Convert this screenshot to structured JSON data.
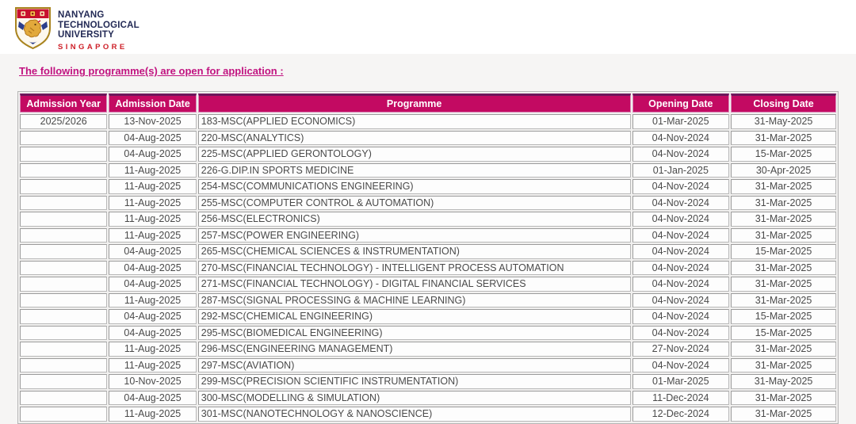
{
  "logo": {
    "icon": "ntu-crest-shield",
    "name_lines": [
      "NANYANG",
      "TECHNOLOGICAL",
      "UNIVERSITY"
    ],
    "country": "SINGAPORE"
  },
  "page": {
    "title": "The following programme(s) are open for application :"
  },
  "table": {
    "columns": [
      {
        "key": "admission_year",
        "label": "Admission Year",
        "align": "center"
      },
      {
        "key": "admission_date",
        "label": "Admission Date",
        "align": "center"
      },
      {
        "key": "programme",
        "label": "Programme",
        "align": "left"
      },
      {
        "key": "opening_date",
        "label": "Opening Date",
        "align": "center"
      },
      {
        "key": "closing_date",
        "label": "Closing Date",
        "align": "center"
      }
    ],
    "rows": [
      [
        "2025/2026",
        "13-Nov-2025",
        "183-MSC(APPLIED ECONOMICS)",
        "01-Mar-2025",
        "31-May-2025"
      ],
      [
        "",
        "04-Aug-2025",
        "220-MSC(ANALYTICS)",
        "04-Nov-2024",
        "31-Mar-2025"
      ],
      [
        "",
        "04-Aug-2025",
        "225-MSC(APPLIED GERONTOLOGY)",
        "04-Nov-2024",
        "15-Mar-2025"
      ],
      [
        "",
        "11-Aug-2025",
        "226-G.DIP.IN SPORTS MEDICINE",
        "01-Jan-2025",
        "30-Apr-2025"
      ],
      [
        "",
        "11-Aug-2025",
        "254-MSC(COMMUNICATIONS ENGINEERING)",
        "04-Nov-2024",
        "31-Mar-2025"
      ],
      [
        "",
        "11-Aug-2025",
        "255-MSC(COMPUTER CONTROL & AUTOMATION)",
        "04-Nov-2024",
        "31-Mar-2025"
      ],
      [
        "",
        "11-Aug-2025",
        "256-MSC(ELECTRONICS)",
        "04-Nov-2024",
        "31-Mar-2025"
      ],
      [
        "",
        "11-Aug-2025",
        "257-MSC(POWER ENGINEERING)",
        "04-Nov-2024",
        "31-Mar-2025"
      ],
      [
        "",
        "04-Aug-2025",
        "265-MSC(CHEMICAL SCIENCES & INSTRUMENTATION)",
        "04-Nov-2024",
        "15-Mar-2025"
      ],
      [
        "",
        "04-Aug-2025",
        "270-MSC(FINANCIAL TECHNOLOGY) - INTELLIGENT PROCESS AUTOMATION",
        "04-Nov-2024",
        "31-Mar-2025"
      ],
      [
        "",
        "04-Aug-2025",
        "271-MSC(FINANCIAL TECHNOLOGY) - DIGITAL FINANCIAL SERVICES",
        "04-Nov-2024",
        "31-Mar-2025"
      ],
      [
        "",
        "11-Aug-2025",
        "287-MSC(SIGNAL PROCESSING & MACHINE LEARNING)",
        "04-Nov-2024",
        "31-Mar-2025"
      ],
      [
        "",
        "04-Aug-2025",
        "292-MSC(CHEMICAL ENGINEERING)",
        "04-Nov-2024",
        "15-Mar-2025"
      ],
      [
        "",
        "04-Aug-2025",
        "295-MSC(BIOMEDICAL ENGINEERING)",
        "04-Nov-2024",
        "15-Mar-2025"
      ],
      [
        "",
        "11-Aug-2025",
        "296-MSC(ENGINEERING MANAGEMENT)",
        "27-Nov-2024",
        "31-Mar-2025"
      ],
      [
        "",
        "11-Aug-2025",
        "297-MSC(AVIATION)",
        "04-Nov-2024",
        "31-Mar-2025"
      ],
      [
        "",
        "10-Nov-2025",
        "299-MSC(PRECISION SCIENTIFIC INSTRUMENTATION)",
        "01-Mar-2025",
        "31-May-2025"
      ],
      [
        "",
        "04-Aug-2025",
        "300-MSC(MODELLING & SIMULATION)",
        "11-Dec-2024",
        "31-Mar-2025"
      ],
      [
        "",
        "11-Aug-2025",
        "301-MSC(NANOTECHNOLOGY & NANOSCIENCE)",
        "12-Dec-2024",
        "31-Mar-2025"
      ]
    ]
  },
  "colors": {
    "brand_magenta_header": "#C30A62",
    "title_magenta": "#C11380",
    "header_top_border": "#6E175B",
    "logo_navy": "#232A55",
    "logo_red": "#CE2029",
    "page_background": "#F6F5F4",
    "cell_border": "#A8A8A8",
    "cell_text": "#4A4A4A"
  }
}
